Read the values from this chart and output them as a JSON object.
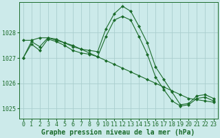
{
  "background_color": "#cceaea",
  "grid_color": "#aacece",
  "line_color": "#1a6b2a",
  "marker_color": "#1a6b2a",
  "xlabel": "Graphe pression niveau de la mer (hPa)",
  "xlabel_fontsize": 7,
  "tick_fontsize": 6,
  "ylim": [
    1024.6,
    1029.2
  ],
  "xlim": [
    -0.5,
    23.5
  ],
  "yticks": [
    1025,
    1026,
    1027,
    1028
  ],
  "xticks": [
    0,
    1,
    2,
    3,
    4,
    5,
    6,
    7,
    8,
    9,
    10,
    11,
    12,
    13,
    14,
    15,
    16,
    17,
    18,
    19,
    20,
    21,
    22,
    23
  ],
  "series1_x": [
    0,
    1,
    2,
    3,
    4,
    5,
    6,
    7,
    8,
    9,
    10,
    11,
    12,
    13,
    14,
    15,
    16,
    17,
    18,
    19,
    20,
    21,
    22,
    23
  ],
  "series1_y": [
    1027.0,
    1027.65,
    1027.45,
    1027.8,
    1027.75,
    1027.6,
    1027.45,
    1027.35,
    1027.3,
    1027.25,
    1028.15,
    1028.75,
    1029.05,
    1028.85,
    1028.25,
    1027.6,
    1026.65,
    1026.15,
    1025.65,
    1025.15,
    1025.2,
    1025.5,
    1025.55,
    1025.4
  ],
  "series2_x": [
    0,
    1,
    2,
    3,
    4,
    5,
    6,
    7,
    8,
    9,
    10,
    11,
    12,
    13,
    14,
    15,
    16,
    17,
    18,
    19,
    20,
    21,
    22,
    23
  ],
  "series2_y": [
    1027.7,
    1027.7,
    1027.8,
    1027.8,
    1027.7,
    1027.6,
    1027.5,
    1027.35,
    1027.2,
    1027.05,
    1026.9,
    1026.75,
    1026.6,
    1026.45,
    1026.3,
    1026.15,
    1026.0,
    1025.85,
    1025.7,
    1025.55,
    1025.4,
    1025.35,
    1025.3,
    1025.25
  ],
  "series3_x": [
    0,
    1,
    2,
    3,
    4,
    5,
    6,
    7,
    8,
    9,
    10,
    11,
    12,
    13,
    14,
    15,
    16,
    17,
    18,
    19,
    20,
    21,
    22,
    23
  ],
  "series3_y": [
    1027.0,
    1027.55,
    1027.3,
    1027.75,
    1027.65,
    1027.5,
    1027.3,
    1027.2,
    1027.15,
    1027.05,
    1027.85,
    1028.5,
    1028.65,
    1028.5,
    1027.85,
    1027.15,
    1026.25,
    1025.75,
    1025.3,
    1025.1,
    1025.15,
    1025.4,
    1025.45,
    1025.3
  ]
}
